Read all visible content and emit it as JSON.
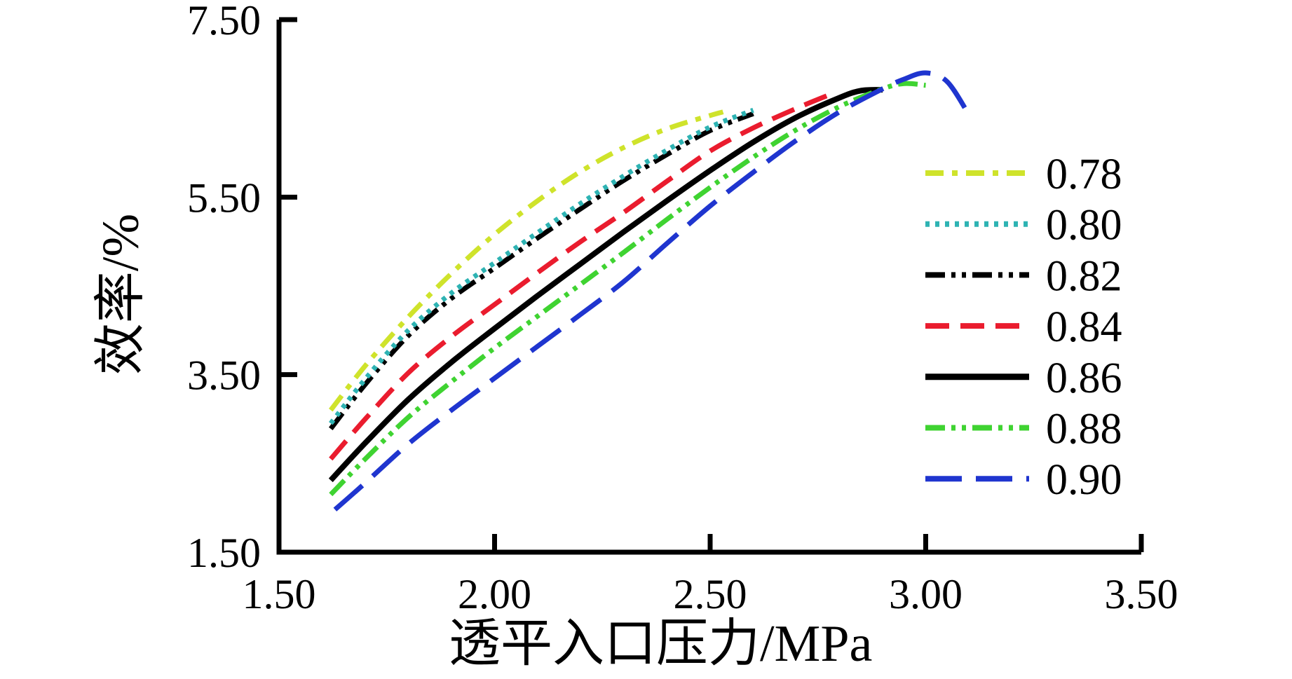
{
  "chart_data": {
    "type": "line",
    "title": "",
    "xlabel": "透平入口压力/MPa",
    "ylabel": "效率/%",
    "xlim": [
      1.5,
      3.5
    ],
    "ylim": [
      1.5,
      7.5
    ],
    "grid": false,
    "legend_position": "right-inside",
    "x_ticks": [
      {
        "value": 1.5,
        "label": "1.50",
        "mark": false
      },
      {
        "value": 2.0,
        "label": "2.00",
        "mark": true
      },
      {
        "value": 2.5,
        "label": "2.50",
        "mark": true
      },
      {
        "value": 3.0,
        "label": "3.00",
        "mark": true
      },
      {
        "value": 3.5,
        "label": "3.50",
        "mark": true
      }
    ],
    "y_ticks": [
      {
        "value": 1.5,
        "label": "1.50",
        "mark": false
      },
      {
        "value": 3.5,
        "label": "3.50",
        "mark": true
      },
      {
        "value": 5.5,
        "label": "5.50",
        "mark": true
      },
      {
        "value": 7.5,
        "label": "7.50",
        "mark": true
      }
    ],
    "series": [
      {
        "name": "0.78",
        "color": "#cfe32b",
        "style": "dash-dot",
        "dash": "26 12 8 12",
        "width": 7,
        "points": [
          [
            1.62,
            3.1
          ],
          [
            1.7,
            3.6
          ],
          [
            1.8,
            4.15
          ],
          [
            1.9,
            4.64
          ],
          [
            2.0,
            5.08
          ],
          [
            2.1,
            5.46
          ],
          [
            2.2,
            5.79
          ],
          [
            2.3,
            6.06
          ],
          [
            2.4,
            6.27
          ],
          [
            2.5,
            6.42
          ],
          [
            2.53,
            6.46
          ]
        ]
      },
      {
        "name": "0.80",
        "color": "#2eb3b3",
        "style": "dotted",
        "dash": "6 8",
        "width": 7,
        "points": [
          [
            1.62,
            2.95
          ],
          [
            1.7,
            3.45
          ],
          [
            1.8,
            4.0
          ],
          [
            1.9,
            4.42
          ],
          [
            2.0,
            4.76
          ],
          [
            2.1,
            5.1
          ],
          [
            2.2,
            5.43
          ],
          [
            2.3,
            5.74
          ],
          [
            2.4,
            6.03
          ],
          [
            2.5,
            6.29
          ],
          [
            2.6,
            6.48
          ]
        ]
      },
      {
        "name": "0.82",
        "color": "#000000",
        "style": "dash-dot-dot",
        "dash": "28 9 6 9 6 9",
        "width": 7,
        "points": [
          [
            1.62,
            2.89
          ],
          [
            1.7,
            3.39
          ],
          [
            1.8,
            3.94
          ],
          [
            1.9,
            4.36
          ],
          [
            2.0,
            4.7
          ],
          [
            2.1,
            5.04
          ],
          [
            2.2,
            5.37
          ],
          [
            2.3,
            5.69
          ],
          [
            2.4,
            5.98
          ],
          [
            2.5,
            6.25
          ],
          [
            2.6,
            6.44
          ]
        ]
      },
      {
        "name": "0.84",
        "color": "#ea1c2e",
        "style": "dashed",
        "dash": "34 16",
        "width": 7,
        "points": [
          [
            1.62,
            2.55
          ],
          [
            1.7,
            3.0
          ],
          [
            1.8,
            3.52
          ],
          [
            1.9,
            3.93
          ],
          [
            2.0,
            4.29
          ],
          [
            2.1,
            4.65
          ],
          [
            2.2,
            5.0
          ],
          [
            2.3,
            5.33
          ],
          [
            2.4,
            5.68
          ],
          [
            2.5,
            6.02
          ],
          [
            2.6,
            6.28
          ],
          [
            2.7,
            6.5
          ],
          [
            2.78,
            6.66
          ]
        ]
      },
      {
        "name": "0.86",
        "color": "#000000",
        "style": "solid",
        "dash": "",
        "width": 8,
        "points": [
          [
            1.62,
            2.31
          ],
          [
            1.7,
            2.73
          ],
          [
            1.8,
            3.22
          ],
          [
            1.9,
            3.64
          ],
          [
            2.0,
            4.02
          ],
          [
            2.1,
            4.39
          ],
          [
            2.2,
            4.75
          ],
          [
            2.3,
            5.11
          ],
          [
            2.4,
            5.46
          ],
          [
            2.5,
            5.8
          ],
          [
            2.6,
            6.12
          ],
          [
            2.7,
            6.4
          ],
          [
            2.8,
            6.62
          ],
          [
            2.85,
            6.7
          ],
          [
            2.9,
            6.71
          ]
        ]
      },
      {
        "name": "0.88",
        "color": "#3fd331",
        "style": "dash-dot-dot",
        "dash": "28 9 6 9 6 9",
        "width": 7,
        "points": [
          [
            1.62,
            2.15
          ],
          [
            1.7,
            2.55
          ],
          [
            1.8,
            3.02
          ],
          [
            1.9,
            3.42
          ],
          [
            2.0,
            3.8
          ],
          [
            2.1,
            4.16
          ],
          [
            2.2,
            4.52
          ],
          [
            2.3,
            4.88
          ],
          [
            2.4,
            5.25
          ],
          [
            2.5,
            5.61
          ],
          [
            2.6,
            5.95
          ],
          [
            2.7,
            6.26
          ],
          [
            2.8,
            6.52
          ],
          [
            2.9,
            6.72
          ],
          [
            2.95,
            6.78
          ],
          [
            3.0,
            6.76
          ]
        ]
      },
      {
        "name": "0.90",
        "color": "#1f35cf",
        "style": "long-dash",
        "dash": "52 20",
        "width": 7,
        "points": [
          [
            1.63,
            1.98
          ],
          [
            1.7,
            2.28
          ],
          [
            1.8,
            2.72
          ],
          [
            1.9,
            3.1
          ],
          [
            2.0,
            3.46
          ],
          [
            2.1,
            3.82
          ],
          [
            2.2,
            4.18
          ],
          [
            2.3,
            4.55
          ],
          [
            2.4,
            4.98
          ],
          [
            2.5,
            5.4
          ],
          [
            2.6,
            5.78
          ],
          [
            2.7,
            6.14
          ],
          [
            2.8,
            6.46
          ],
          [
            2.9,
            6.72
          ],
          [
            2.95,
            6.83
          ],
          [
            3.0,
            6.9
          ],
          [
            3.05,
            6.8
          ],
          [
            3.1,
            6.43
          ]
        ]
      }
    ],
    "axis_color": "#000000",
    "background_color": "#ffffff"
  }
}
